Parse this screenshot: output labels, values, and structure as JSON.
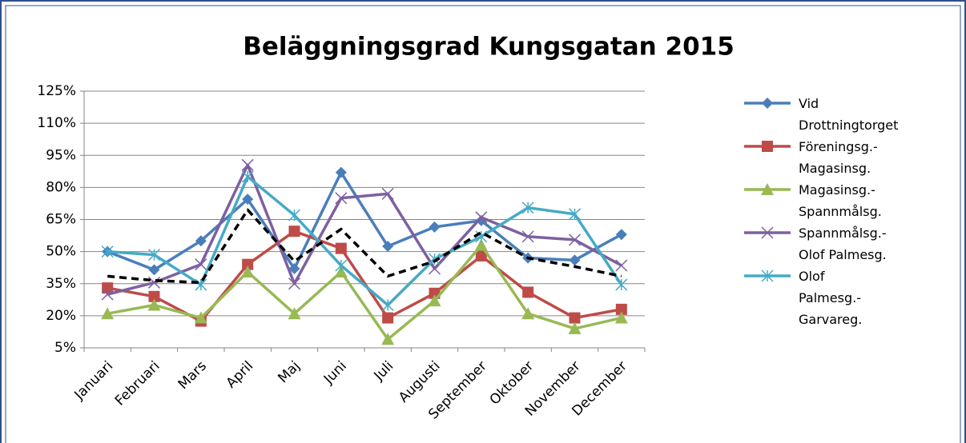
{
  "chart_data": {
    "type": "line",
    "title": "Beläggningsgrad Kungsgatan 2015",
    "categories": [
      "Januari",
      "Februari",
      "Mars",
      "April",
      "Maj",
      "Juni",
      "Juli",
      "Augusti",
      "September",
      "Oktober",
      "November",
      "December"
    ],
    "ylim": [
      5,
      125
    ],
    "yticks": [
      {
        "value": 5,
        "label": "5%"
      },
      {
        "value": 20,
        "label": "20%"
      },
      {
        "value": 35,
        "label": "35%"
      },
      {
        "value": 50,
        "label": "50%"
      },
      {
        "value": 65,
        "label": "65%"
      },
      {
        "value": 80,
        "label": "80%"
      },
      {
        "value": 95,
        "label": "95%"
      },
      {
        "value": 110,
        "label": "110%"
      },
      {
        "value": 125,
        "label": "125%"
      }
    ],
    "grid": true,
    "legend": "right",
    "series": [
      {
        "name": "Vid Drottningtorget",
        "color": "#4a7ebb",
        "marker": "diamond",
        "values": [
          50,
          41.5,
          55,
          74.5,
          42,
          87,
          52.5,
          61.5,
          64.5,
          47,
          46,
          58
        ]
      },
      {
        "name": "Föreningsg.-Magasinsg.",
        "color": "#be4b48",
        "marker": "square",
        "values": [
          33,
          29,
          17.5,
          44,
          59.5,
          51.5,
          19,
          30.5,
          48,
          31,
          19,
          23
        ]
      },
      {
        "name": "Magasinsg.-Spannmålsg.",
        "color": "#98b954",
        "marker": "triangle",
        "values": [
          21,
          25,
          19,
          40.5,
          21,
          40.5,
          9,
          27,
          53,
          21,
          14,
          19
        ]
      },
      {
        "name": "Spannmålsg.-Olof Palmesg.",
        "color": "#7d60a0",
        "marker": "x",
        "values": [
          30,
          35.5,
          44,
          90.5,
          35,
          75,
          77,
          42,
          66,
          57,
          55.5,
          43.5
        ]
      },
      {
        "name": "Olof Palmesg.-Garvareg.",
        "color": "#46aac5",
        "marker": "star",
        "values": [
          50,
          48.5,
          34.5,
          85,
          67,
          43.5,
          25,
          46.5,
          57,
          70.5,
          67.5,
          34.5
        ]
      },
      {
        "color": "#000000",
        "marker": "none",
        "dash": true,
        "values": [
          38.5,
          36.5,
          35.5,
          69.5,
          45.5,
          60.5,
          38.5,
          45.5,
          59,
          47,
          43,
          38.5
        ]
      }
    ]
  }
}
